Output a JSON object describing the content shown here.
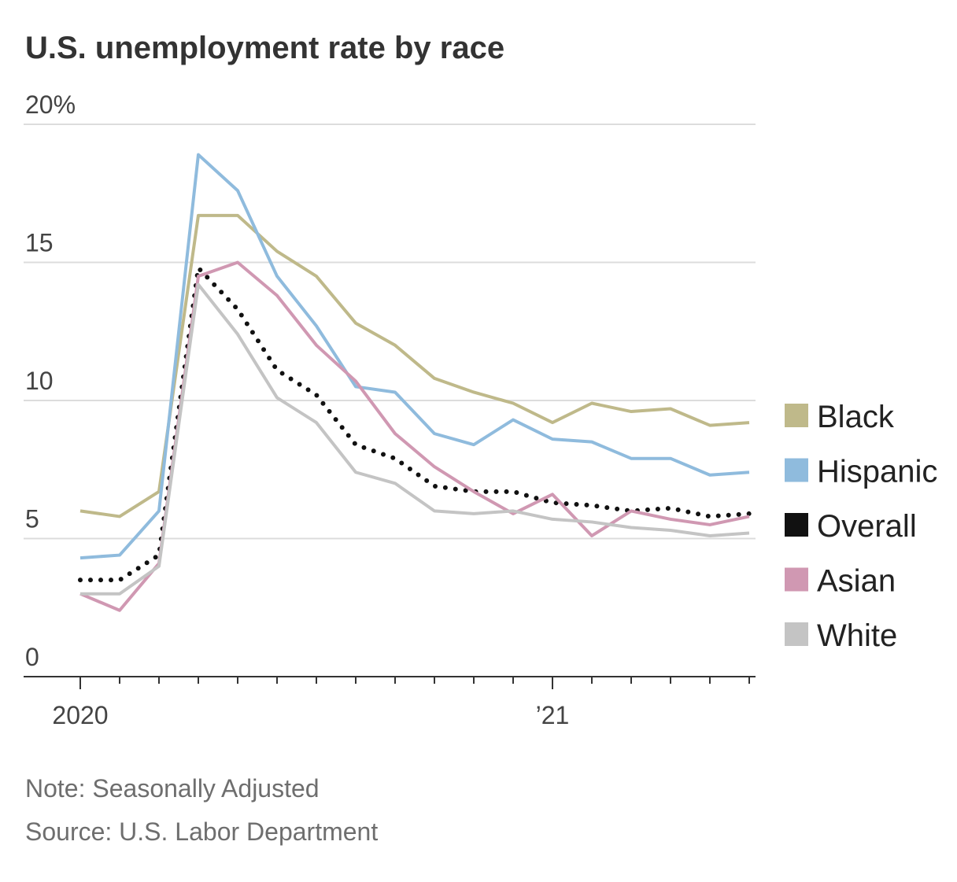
{
  "chart_data": {
    "type": "line",
    "title": "U.S. unemployment rate by race",
    "note": "Note: Seasonally Adjusted",
    "source": "Source: U.S. Labor Department",
    "x": [
      "2020-01",
      "2020-02",
      "2020-03",
      "2020-04",
      "2020-05",
      "2020-06",
      "2020-07",
      "2020-08",
      "2020-09",
      "2020-10",
      "2020-11",
      "2020-12",
      "2021-01",
      "2021-02",
      "2021-03",
      "2021-04",
      "2021-05",
      "2021-06"
    ],
    "x_tick_labels": [
      {
        "x": "2020-01",
        "label": "2020"
      },
      {
        "x": "2021-01",
        "label": "’21"
      }
    ],
    "y_ticks": [
      {
        "value": 0,
        "label": "0"
      },
      {
        "value": 5,
        "label": "5"
      },
      {
        "value": 10,
        "label": "10"
      },
      {
        "value": 15,
        "label": "15"
      },
      {
        "value": 20,
        "label": "20%"
      }
    ],
    "ylim": [
      0,
      20
    ],
    "grid": "horizontal",
    "legend_position": "right",
    "series": [
      {
        "name": "Black",
        "color": "#bfb98a",
        "style": "solid",
        "values": [
          6.0,
          5.8,
          6.7,
          16.7,
          16.7,
          15.4,
          14.5,
          12.8,
          12.0,
          10.8,
          10.3,
          9.9,
          9.2,
          9.9,
          9.6,
          9.7,
          9.1,
          9.2
        ]
      },
      {
        "name": "Hispanic",
        "color": "#8fbbdd",
        "style": "solid",
        "values": [
          4.3,
          4.4,
          6.0,
          18.9,
          17.6,
          14.5,
          12.7,
          10.5,
          10.3,
          8.8,
          8.4,
          9.3,
          8.6,
          8.5,
          7.9,
          7.9,
          7.3,
          7.4
        ]
      },
      {
        "name": "Overall",
        "color": "#111111",
        "style": "dotted",
        "values": [
          3.5,
          3.5,
          4.4,
          14.8,
          13.3,
          11.1,
          10.2,
          8.4,
          7.9,
          6.9,
          6.7,
          6.7,
          6.3,
          6.2,
          6.0,
          6.1,
          5.8,
          5.9
        ]
      },
      {
        "name": "Asian",
        "color": "#d098b2",
        "style": "solid",
        "values": [
          3.0,
          2.4,
          4.1,
          14.5,
          15.0,
          13.8,
          12.0,
          10.7,
          8.8,
          7.6,
          6.7,
          5.9,
          6.6,
          5.1,
          6.0,
          5.7,
          5.5,
          5.8
        ]
      },
      {
        "name": "White",
        "color": "#c4c4c4",
        "style": "solid",
        "values": [
          3.0,
          3.0,
          4.0,
          14.2,
          12.4,
          10.1,
          9.2,
          7.4,
          7.0,
          6.0,
          5.9,
          6.0,
          5.7,
          5.6,
          5.4,
          5.3,
          5.1,
          5.2
        ]
      }
    ]
  }
}
